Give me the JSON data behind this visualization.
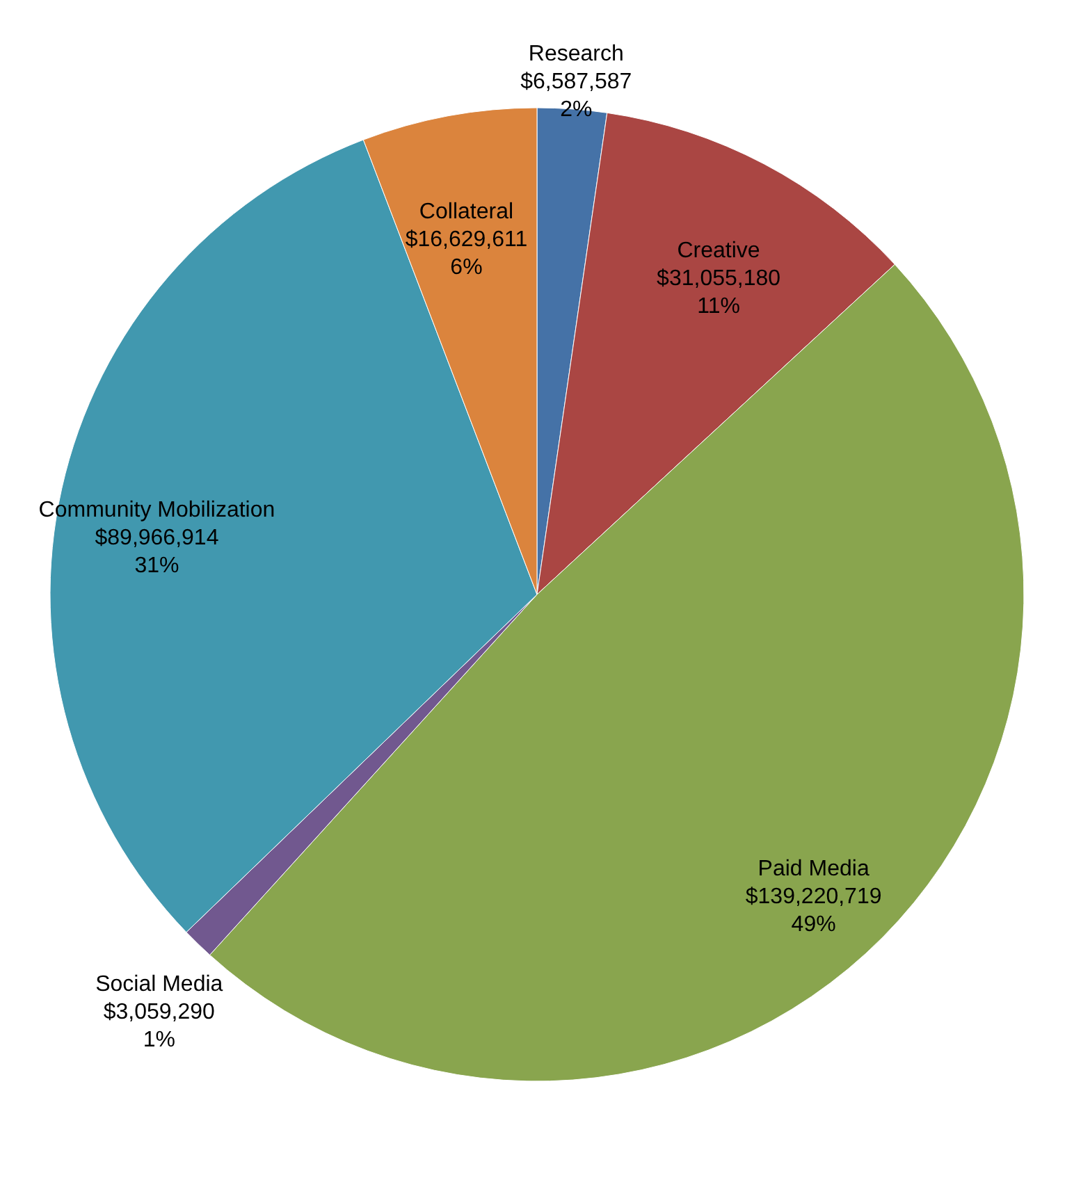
{
  "chart_data": {
    "type": "pie",
    "categories": [
      "Research",
      "Creative",
      "Paid Media",
      "Social Media",
      "Community Mobilization",
      "Collateral"
    ],
    "values": [
      6587587,
      31055180,
      139220719,
      3059290,
      89966914,
      16629611
    ],
    "colors": [
      "#4572a7",
      "#aa4643",
      "#89a54e",
      "#71588f",
      "#4198af",
      "#db843d"
    ],
    "value_labels": [
      "$6,587,587\n2%",
      "$31,055,180\n11%",
      "$139,220,719\n49%",
      "$3,059,290\n1%",
      "$89,966,914\n31%",
      "$16,629,611\n6%"
    ]
  }
}
